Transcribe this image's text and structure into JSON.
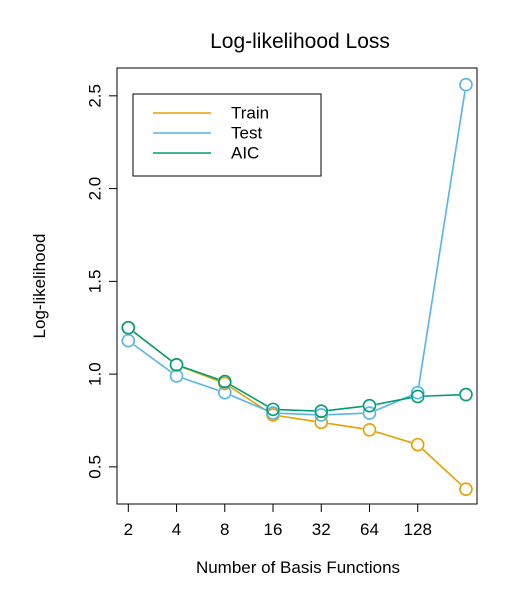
{
  "chart_data": {
    "type": "line",
    "title": "Log-likelihood Loss",
    "xlabel": "Number of Basis Functions",
    "ylabel": "Log-likelihood",
    "x_scale": "log2",
    "x_ticks": [
      "2",
      "4",
      "8",
      "16",
      "32",
      "64",
      "128"
    ],
    "x_tick_values": [
      2,
      4,
      8,
      16,
      32,
      64,
      128
    ],
    "y_ticks": [
      "0.5",
      "1.0",
      "1.5",
      "2.0",
      "2.5"
    ],
    "y_tick_values": [
      0.5,
      1.0,
      1.5,
      2.0,
      2.5
    ],
    "xlim": [
      1.7,
      300
    ],
    "ylim": [
      0.3,
      2.65
    ],
    "x": [
      2,
      4,
      8,
      16,
      32,
      64,
      128,
      256
    ],
    "legend_position": "top-left",
    "grid": false,
    "series": [
      {
        "name": "Train",
        "color": "#E69F00",
        "values": [
          1.25,
          1.05,
          0.95,
          0.78,
          0.74,
          0.7,
          0.62,
          0.38
        ]
      },
      {
        "name": "Test",
        "color": "#56B4E9",
        "values": [
          1.18,
          0.99,
          0.9,
          0.79,
          0.78,
          0.79,
          0.9,
          2.56
        ]
      },
      {
        "name": "AIC",
        "color": "#009E73",
        "values": [
          1.25,
          1.05,
          0.96,
          0.81,
          0.8,
          0.83,
          0.88,
          0.89
        ]
      }
    ]
  }
}
